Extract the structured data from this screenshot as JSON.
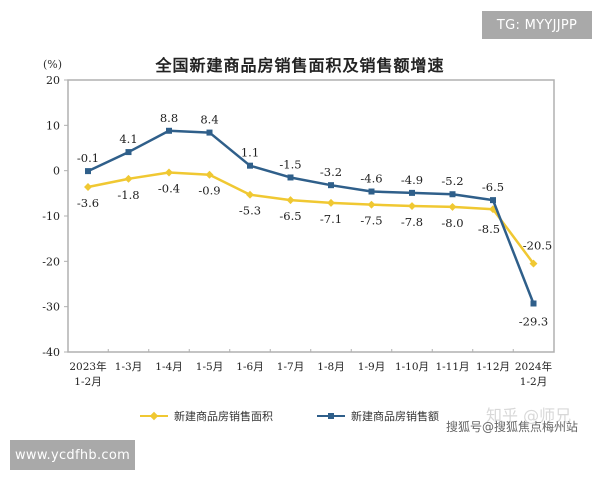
{
  "watermarks": {
    "tg": "TG: MYYJJPP",
    "www": "www.ycdfhb.com",
    "zhihu": "知乎 @师兄",
    "sohu": "搜狐号@搜狐焦点梅州站"
  },
  "colors": {
    "area_series": "#f0c832",
    "sales_series": "#2f5f8a",
    "axis": "#b0b0b0"
  },
  "chart_data": {
    "type": "line",
    "title": "全国新建商品房销售面积及销售额增速",
    "ylabel": "(%)",
    "xlabel": "",
    "ylim": [
      -40,
      20
    ],
    "yticks": [
      20,
      10,
      0,
      -10,
      -20,
      -30,
      -40
    ],
    "grid": false,
    "legend_position": "bottom",
    "categories": [
      "2023年\n1-2月",
      "1-3月",
      "1-4月",
      "1-5月",
      "1-6月",
      "1-7月",
      "1-8月",
      "1-9月",
      "1-10月",
      "1-11月",
      "1-12月",
      "2024年\n1-2月"
    ],
    "series": [
      {
        "name": "新建商品房销售面积",
        "values": [
          -3.6,
          -1.8,
          -0.4,
          -0.9,
          -5.3,
          -6.5,
          -7.1,
          -7.5,
          -7.8,
          -8.0,
          -8.5,
          -20.5
        ]
      },
      {
        "name": "新建商品房销售额",
        "values": [
          -0.1,
          4.1,
          8.8,
          8.4,
          1.1,
          -1.5,
          -3.2,
          -4.6,
          -4.9,
          -5.2,
          -6.5,
          -29.3
        ]
      }
    ]
  }
}
